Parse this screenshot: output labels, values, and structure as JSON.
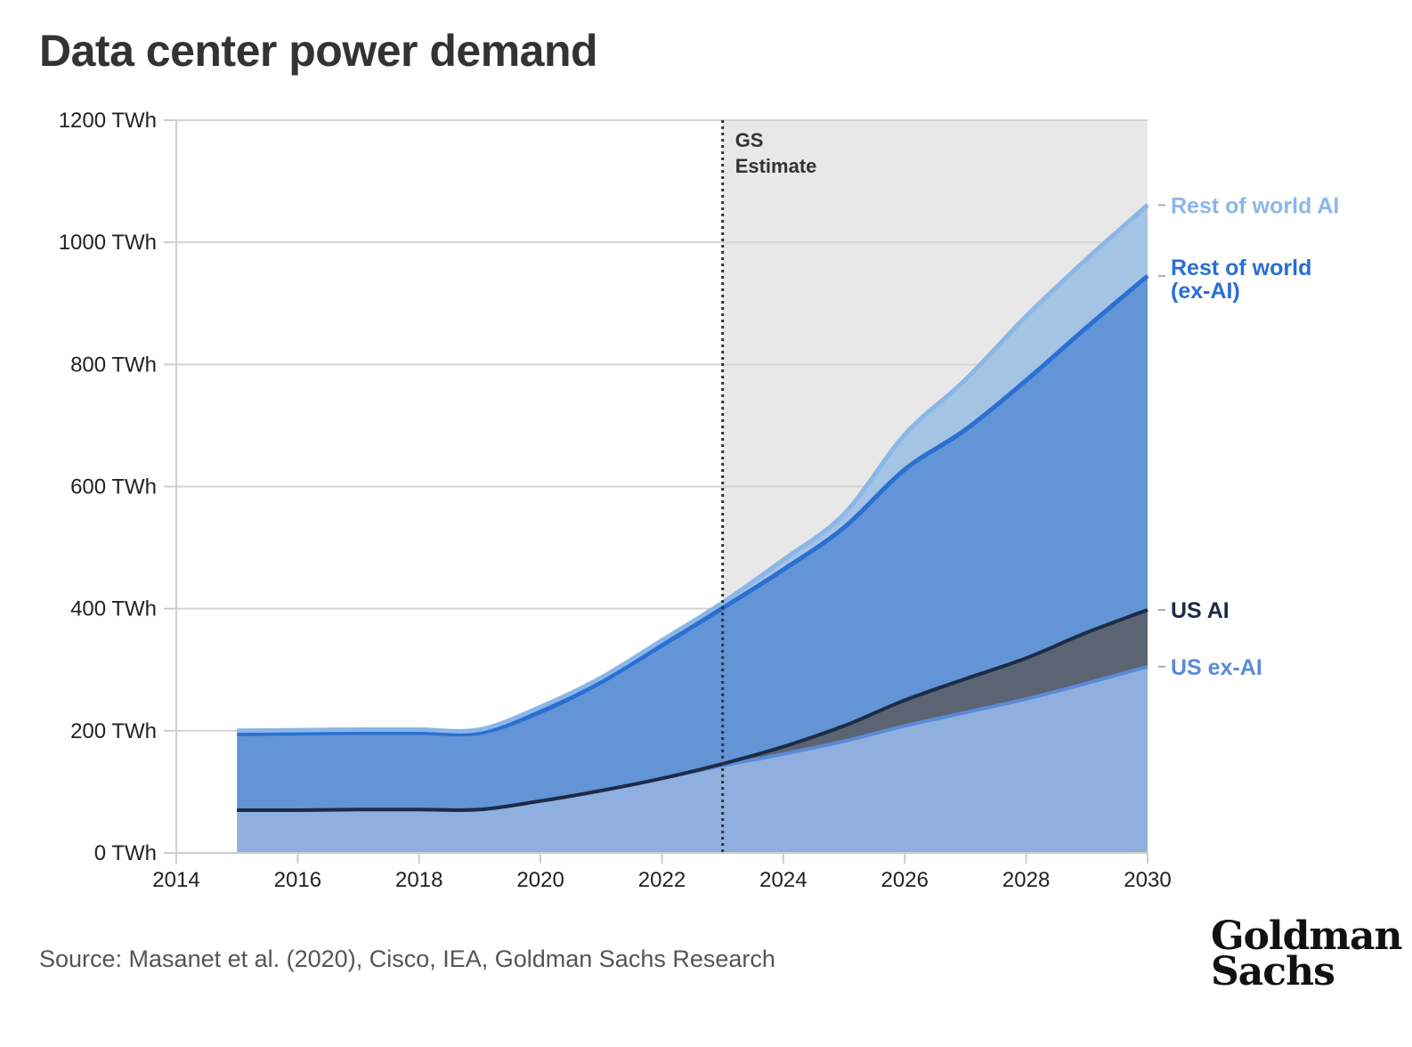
{
  "title": "Data center power demand",
  "source": "Source: Masanet et al. (2020), Cisco, IEA, Goldman Sachs Research",
  "logo": {
    "line1": "Goldman",
    "line2": "Sachs"
  },
  "chart_data": {
    "type": "area",
    "stacked": true,
    "x": [
      2015,
      2016,
      2017,
      2018,
      2019,
      2020,
      2021,
      2022,
      2023,
      2024,
      2025,
      2026,
      2027,
      2028,
      2029,
      2030
    ],
    "series": [
      {
        "name": "US ex-AI",
        "color": "#5b8ad6",
        "fill": "#8fb0de",
        "values": [
          70,
          70,
          71,
          71,
          71,
          85,
          102,
          122,
          143,
          162,
          183,
          208,
          230,
          252,
          278,
          305
        ]
      },
      {
        "name": "US AI",
        "color": "#1c2b48",
        "fill": "#5a6472",
        "values": [
          0,
          0,
          0,
          0,
          0,
          0,
          0,
          0,
          3,
          12,
          25,
          42,
          55,
          67,
          83,
          93
        ]
      },
      {
        "name": "Rest of world\n(ex-AI)",
        "color": "#2a6fd1",
        "fill": "#6294d6",
        "values": [
          125,
          126,
          126,
          126,
          126,
          146,
          178,
          218,
          255,
          290,
          325,
          378,
          408,
          455,
          500,
          547
        ]
      },
      {
        "name": "Rest of world AI",
        "color": "#8ab7e8",
        "fill": "#a4c4e4",
        "values": [
          5,
          5,
          5,
          5,
          5,
          8,
          7,
          8,
          9,
          16,
          22,
          57,
          82,
          105,
          112,
          116
        ]
      }
    ],
    "y_tick_labels": [
      "0 TWh",
      "200 TWh",
      "400 TWh",
      "600 TWh",
      "800 TWh",
      "1000 TWh",
      "1200 TWh"
    ],
    "y_ticks": [
      0,
      200,
      400,
      600,
      800,
      1000,
      1200
    ],
    "x_tick_labels": [
      "2014",
      "2016",
      "2018",
      "2020",
      "2022",
      "2024",
      "2026",
      "2028",
      "2030"
    ],
    "x_ticks": [
      2014,
      2016,
      2018,
      2020,
      2022,
      2024,
      2026,
      2028,
      2030
    ],
    "xlim": [
      2014,
      2030
    ],
    "ylim": [
      0,
      1200
    ],
    "grid": "horizontal",
    "estimate_start": 2023,
    "estimate_label": [
      "GS",
      "Estimate"
    ],
    "legend": "right"
  }
}
